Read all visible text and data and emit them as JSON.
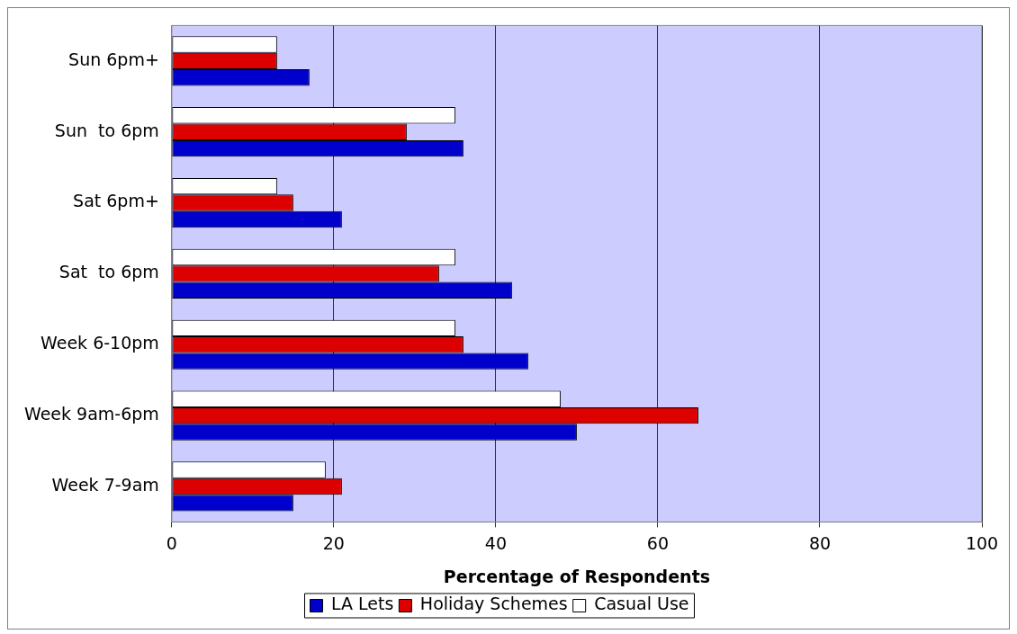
{
  "chart_data": {
    "type": "bar",
    "orientation": "horizontal",
    "xlabel": "Percentage of Respondents",
    "categories": [
      "Sun 6pm+",
      "Sun  to 6pm",
      "Sat 6pm+",
      "Sat  to 6pm",
      "Week 6-10pm",
      "Week 9am-6pm",
      "Week 7-9am"
    ],
    "series": [
      {
        "name": "LA Lets",
        "color": "#0000cc",
        "values": [
          17,
          36,
          21,
          42,
          44,
          50,
          15
        ]
      },
      {
        "name": "Holiday Schemes",
        "color": "#dd0000",
        "values": [
          13,
          29,
          15,
          33,
          36,
          65,
          21
        ]
      },
      {
        "name": "Casual Use",
        "color": "#ffffff",
        "values": [
          13,
          35,
          13,
          35,
          35,
          48,
          19
        ]
      }
    ],
    "xlim": [
      0,
      100
    ],
    "xticks": [
      0,
      20,
      40,
      60,
      80,
      100
    ],
    "grid": "x",
    "legend": "bottom"
  }
}
